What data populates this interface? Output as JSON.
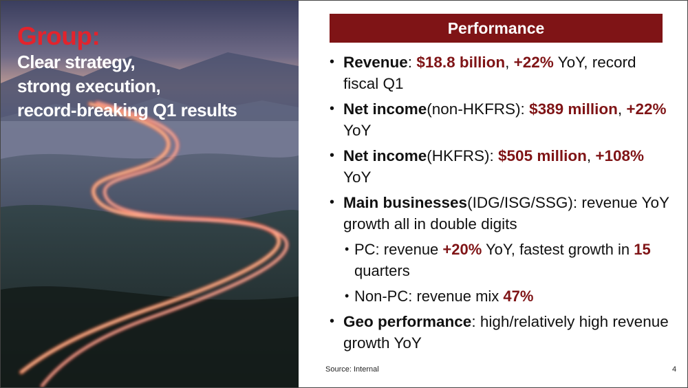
{
  "left": {
    "title": "Group:",
    "subtitle_lines": [
      "Clear strategy,",
      "strong execution,",
      "record-breaking Q1 results"
    ],
    "image_description_icon": "road-light-trails-photo"
  },
  "banner": {
    "label": "Performance"
  },
  "bullets": [
    {
      "parts": [
        {
          "t": "Revenue",
          "s": "b"
        },
        {
          "t": ": ",
          "s": ""
        },
        {
          "t": "$18.8 billion",
          "s": "hl"
        },
        {
          "t": ", ",
          "s": ""
        },
        {
          "t": "+22%",
          "s": "hl"
        },
        {
          "t": " YoY, record fiscal Q1",
          "s": ""
        }
      ]
    },
    {
      "parts": [
        {
          "t": "Net income",
          "s": "b"
        },
        {
          "t": "(non-HKFRS): ",
          "s": ""
        },
        {
          "t": "$389 million",
          "s": "hl"
        },
        {
          "t": ", ",
          "s": ""
        },
        {
          "t": "+22%",
          "s": "hl"
        },
        {
          "t": " YoY",
          "s": ""
        }
      ]
    },
    {
      "parts": [
        {
          "t": "Net income",
          "s": "b"
        },
        {
          "t": "(HKFRS): ",
          "s": ""
        },
        {
          "t": "$505 million",
          "s": "hl"
        },
        {
          "t": ", ",
          "s": ""
        },
        {
          "t": "+108%",
          "s": "hl"
        },
        {
          "t": " YoY",
          "s": ""
        }
      ]
    },
    {
      "parts": [
        {
          "t": "Main businesses",
          "s": "b"
        },
        {
          "t": "(IDG/ISG/SSG): revenue YoY growth all in double digits",
          "s": ""
        }
      ]
    },
    {
      "sub": true,
      "parts": [
        {
          "t": "PC: revenue ",
          "s": ""
        },
        {
          "t": "+20%",
          "s": "hl"
        },
        {
          "t": " YoY, fastest growth in ",
          "s": ""
        },
        {
          "t": "15",
          "s": "hl"
        },
        {
          "t": " quarters",
          "s": ""
        }
      ]
    },
    {
      "sub": true,
      "parts": [
        {
          "t": "Non-PC: revenue mix ",
          "s": ""
        },
        {
          "t": "47%",
          "s": "hl"
        }
      ]
    },
    {
      "parts": [
        {
          "t": "Geo performance",
          "s": "b"
        },
        {
          "t": ": high/relatively high revenue growth YoY",
          "s": ""
        }
      ]
    }
  ],
  "footer": {
    "source": "Source: Internal",
    "page_number": "4"
  },
  "colors": {
    "accent_red": "#e3232c",
    "highlight_maroon": "#7f1416",
    "text": "#111111"
  }
}
